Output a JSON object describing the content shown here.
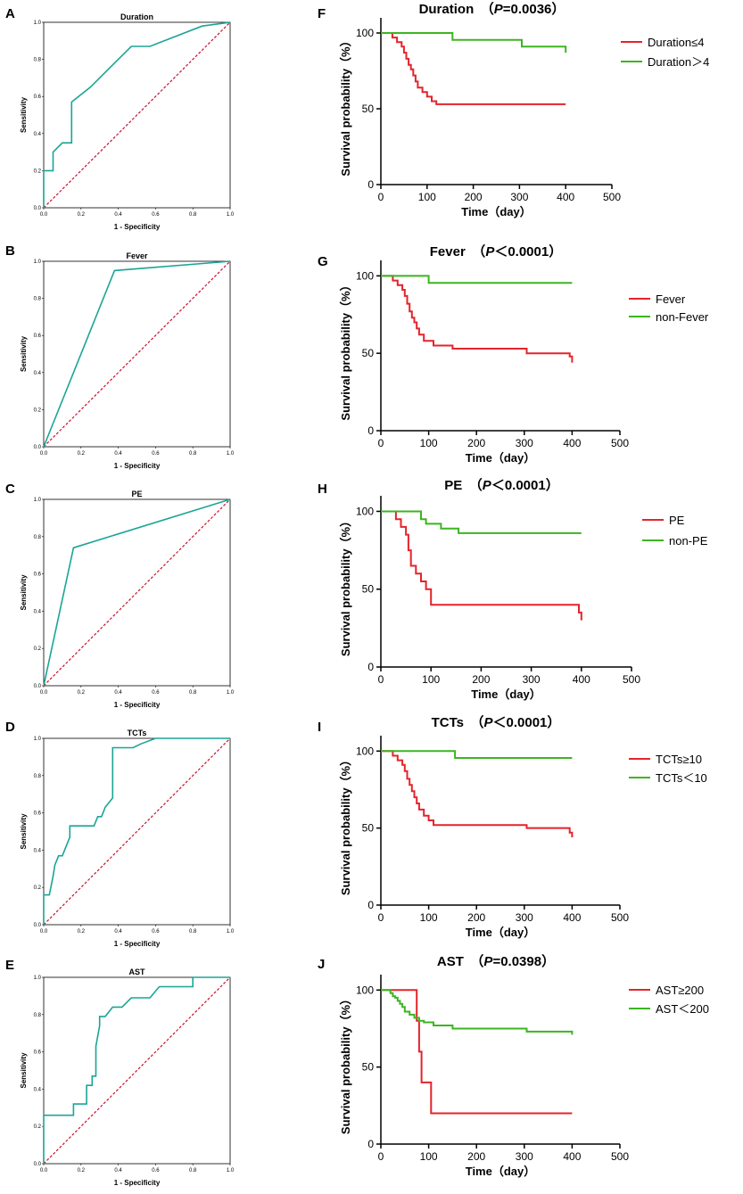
{
  "chart_data": [
    {
      "panel": "A",
      "type": "line",
      "chart": "roc",
      "title": "Duration",
      "xlabel": "1 - Specificity",
      "ylabel": "Sensitivity",
      "xlim": [
        0,
        1
      ],
      "ylim": [
        0,
        1
      ],
      "ticks": [
        "0.0",
        "0.2",
        "0.4",
        "0.6",
        "0.8",
        "1.0"
      ],
      "reference_line": {
        "x": [
          0,
          1
        ],
        "y": [
          0,
          1
        ],
        "color": "#c8102e"
      },
      "series": [
        {
          "name": "ROC",
          "color": "#1aa595",
          "x": [
            0,
            0,
            0.05,
            0.05,
            0.1,
            0.1,
            0.15,
            0.15,
            0.25,
            0.47,
            0.57,
            0.85,
            1.0
          ],
          "y": [
            0,
            0.2,
            0.2,
            0.3,
            0.35,
            0.35,
            0.35,
            0.57,
            0.65,
            0.87,
            0.87,
            0.98,
            1.0
          ]
        }
      ]
    },
    {
      "panel": "B",
      "type": "line",
      "chart": "roc",
      "title": "Fever",
      "xlabel": "1 - Specificity",
      "ylabel": "Sensitivity",
      "xlim": [
        0,
        1
      ],
      "ylim": [
        0,
        1
      ],
      "ticks": [
        "0.0",
        "0.2",
        "0.4",
        "0.6",
        "0.8",
        "1.0"
      ],
      "reference_line": {
        "x": [
          0,
          1
        ],
        "y": [
          0,
          1
        ],
        "color": "#c8102e"
      },
      "series": [
        {
          "name": "ROC",
          "color": "#1aa595",
          "x": [
            0,
            0.38,
            1.0
          ],
          "y": [
            0,
            0.95,
            1.0
          ]
        }
      ]
    },
    {
      "panel": "C",
      "type": "line",
      "chart": "roc",
      "title": "PE",
      "xlabel": "1 - Specificity",
      "ylabel": "Sensitivity",
      "xlim": [
        0,
        1
      ],
      "ylim": [
        0,
        1
      ],
      "ticks": [
        "0.0",
        "0.2",
        "0.4",
        "0.6",
        "0.8",
        "1.0"
      ],
      "reference_line": {
        "x": [
          0,
          1
        ],
        "y": [
          0,
          1
        ],
        "color": "#c8102e"
      },
      "series": [
        {
          "name": "ROC",
          "color": "#1aa595",
          "x": [
            0,
            0.16,
            1.0
          ],
          "y": [
            0,
            0.74,
            1.0
          ]
        }
      ]
    },
    {
      "panel": "D",
      "type": "line",
      "chart": "roc",
      "title": "TCTs",
      "xlabel": "1 - Specificity",
      "ylabel": "Sensitivity",
      "xlim": [
        0,
        1
      ],
      "ylim": [
        0,
        1
      ],
      "ticks": [
        "0.0",
        "0.2",
        "0.4",
        "0.6",
        "0.8",
        "1.0"
      ],
      "reference_line": {
        "x": [
          0,
          1
        ],
        "y": [
          0,
          1
        ],
        "color": "#c8102e"
      },
      "series": [
        {
          "name": "ROC",
          "color": "#1aa595",
          "x": [
            0,
            0,
            0.03,
            0.05,
            0.06,
            0.08,
            0.1,
            0.12,
            0.14,
            0.14,
            0.27,
            0.29,
            0.31,
            0.33,
            0.37,
            0.37,
            0.48,
            0.52,
            0.6,
            1.0
          ],
          "y": [
            0,
            0.16,
            0.16,
            0.26,
            0.32,
            0.37,
            0.37,
            0.42,
            0.47,
            0.53,
            0.53,
            0.58,
            0.58,
            0.63,
            0.68,
            0.95,
            0.95,
            0.97,
            1.0,
            1.0
          ]
        }
      ]
    },
    {
      "panel": "E",
      "type": "line",
      "chart": "roc",
      "title": "AST",
      "xlabel": "1 - Specificity",
      "ylabel": "Sensitivity",
      "xlim": [
        0,
        1
      ],
      "ylim": [
        0,
        1
      ],
      "ticks": [
        "0.0",
        "0.2",
        "0.4",
        "0.6",
        "0.8",
        "1.0"
      ],
      "reference_line": {
        "x": [
          0,
          1
        ],
        "y": [
          0,
          1
        ],
        "color": "#c8102e"
      },
      "series": [
        {
          "name": "ROC",
          "color": "#1aa595",
          "x": [
            0,
            0,
            0.16,
            0.16,
            0.23,
            0.23,
            0.26,
            0.26,
            0.28,
            0.28,
            0.3,
            0.3,
            0.33,
            0.37,
            0.42,
            0.47,
            0.52,
            0.57,
            0.62,
            0.8,
            0.8,
            1.0
          ],
          "y": [
            0,
            0.26,
            0.26,
            0.32,
            0.32,
            0.42,
            0.42,
            0.47,
            0.47,
            0.63,
            0.74,
            0.79,
            0.79,
            0.84,
            0.84,
            0.89,
            0.89,
            0.89,
            0.95,
            0.95,
            1.0,
            1.0
          ]
        }
      ]
    },
    {
      "panel": "F",
      "type": "line",
      "chart": "km",
      "title_main": "Duration",
      "p_label": "P",
      "p_value": "=0.0036",
      "xlabel": "Time（day）",
      "ylabel": "Survival probability（%）",
      "xlim": [
        0,
        500
      ],
      "ylim": [
        0,
        110
      ],
      "xticks": [
        0,
        100,
        200,
        300,
        400,
        500
      ],
      "yticks": [
        0,
        50,
        100
      ],
      "series": [
        {
          "name": "Duration≤4",
          "color": "#e3242b",
          "x": [
            0,
            15,
            25,
            35,
            45,
            50,
            55,
            60,
            65,
            70,
            75,
            80,
            90,
            100,
            110,
            120,
            400
          ],
          "y": [
            100,
            100,
            97,
            94,
            91,
            87,
            83,
            79,
            76,
            72,
            68,
            64,
            61,
            58,
            55,
            53,
            53
          ]
        },
        {
          "name": "Duration＞4",
          "color": "#3cb521",
          "x": [
            0,
            155,
            155,
            305,
            305,
            395,
            400
          ],
          "y": [
            100,
            100,
            95.5,
            95.5,
            91,
            91,
            87
          ]
        }
      ]
    },
    {
      "panel": "G",
      "type": "line",
      "chart": "km",
      "title_main": "Fever",
      "p_label": "P",
      "p_value": "＜0.0001",
      "xlabel": "Time（day）",
      "ylabel": "Survival probability（%）",
      "xlim": [
        0,
        500
      ],
      "ylim": [
        0,
        110
      ],
      "xticks": [
        0,
        100,
        200,
        300,
        400,
        500
      ],
      "yticks": [
        0,
        50,
        100
      ],
      "series": [
        {
          "name": "Fever",
          "color": "#e3242b",
          "x": [
            0,
            15,
            25,
            35,
            45,
            50,
            55,
            60,
            65,
            70,
            75,
            80,
            90,
            110,
            150,
            305,
            395,
            400
          ],
          "y": [
            100,
            100,
            97,
            94,
            91,
            87,
            82,
            77,
            73,
            70,
            66,
            62,
            58,
            55,
            53,
            50,
            48,
            44
          ]
        },
        {
          "name": "non-Fever",
          "color": "#3cb521",
          "x": [
            0,
            100,
            100,
            400
          ],
          "y": [
            100,
            100,
            95.5,
            95.5
          ]
        }
      ]
    },
    {
      "panel": "H",
      "type": "line",
      "chart": "km",
      "title_main": "PE",
      "p_label": "P",
      "p_value": "＜0.0001",
      "xlabel": "Time（day）",
      "ylabel": "Survival probability（%）",
      "xlim": [
        0,
        500
      ],
      "ylim": [
        0,
        110
      ],
      "xticks": [
        0,
        100,
        200,
        300,
        400,
        500
      ],
      "yticks": [
        0,
        50,
        100
      ],
      "series": [
        {
          "name": "PE",
          "color": "#e3242b",
          "x": [
            0,
            20,
            30,
            40,
            50,
            55,
            60,
            70,
            80,
            90,
            100,
            305,
            395,
            400
          ],
          "y": [
            100,
            100,
            95,
            90,
            85,
            75,
            65,
            60,
            55,
            50,
            40,
            40,
            35,
            30
          ]
        },
        {
          "name": "non-PE",
          "color": "#3cb521",
          "x": [
            0,
            70,
            80,
            90,
            120,
            155,
            400
          ],
          "y": [
            100,
            100,
            95,
            92,
            89,
            86,
            86
          ]
        }
      ]
    },
    {
      "panel": "I",
      "type": "line",
      "chart": "km",
      "title_main": "TCTs",
      "p_label": "P",
      "p_value": "＜0.0001",
      "xlabel": "Time（day）",
      "ylabel": "Survival probability（%）",
      "xlim": [
        0,
        500
      ],
      "ylim": [
        0,
        110
      ],
      "xticks": [
        0,
        100,
        200,
        300,
        400,
        500
      ],
      "yticks": [
        0,
        50,
        100
      ],
      "series": [
        {
          "name": "TCTs≥10",
          "color": "#e3242b",
          "x": [
            0,
            15,
            25,
            35,
            45,
            50,
            55,
            60,
            65,
            70,
            75,
            80,
            90,
            100,
            110,
            305,
            395,
            400
          ],
          "y": [
            100,
            100,
            97,
            94,
            91,
            87,
            82,
            78,
            74,
            70,
            66,
            62,
            58,
            55,
            52,
            50,
            47,
            44
          ]
        },
        {
          "name": "TCTs＜10",
          "color": "#3cb521",
          "x": [
            0,
            155,
            155,
            400
          ],
          "y": [
            100,
            100,
            95.5,
            95.5
          ]
        }
      ]
    },
    {
      "panel": "J",
      "type": "line",
      "chart": "km",
      "title_main": "AST",
      "p_label": "P",
      "p_value": "=0.0398",
      "xlabel": "Time（day）",
      "ylabel": "Survival probability（%）",
      "xlim": [
        0,
        500
      ],
      "ylim": [
        0,
        110
      ],
      "xticks": [
        0,
        100,
        200,
        300,
        400,
        500
      ],
      "yticks": [
        0,
        50,
        100
      ],
      "series": [
        {
          "name": "AST≥200",
          "color": "#e3242b",
          "x": [
            0,
            70,
            75,
            80,
            85,
            90,
            95,
            100,
            105,
            400
          ],
          "y": [
            100,
            100,
            80,
            60,
            40,
            40,
            40,
            40,
            20,
            20
          ]
        },
        {
          "name": "AST＜200",
          "color": "#3cb521",
          "x": [
            0,
            15,
            20,
            25,
            30,
            35,
            40,
            45,
            50,
            60,
            70,
            80,
            90,
            110,
            150,
            305,
            400
          ],
          "y": [
            100,
            100,
            98,
            96,
            95,
            93,
            91,
            89,
            86,
            84,
            82,
            80,
            79,
            77,
            75,
            73,
            71
          ]
        }
      ]
    }
  ]
}
